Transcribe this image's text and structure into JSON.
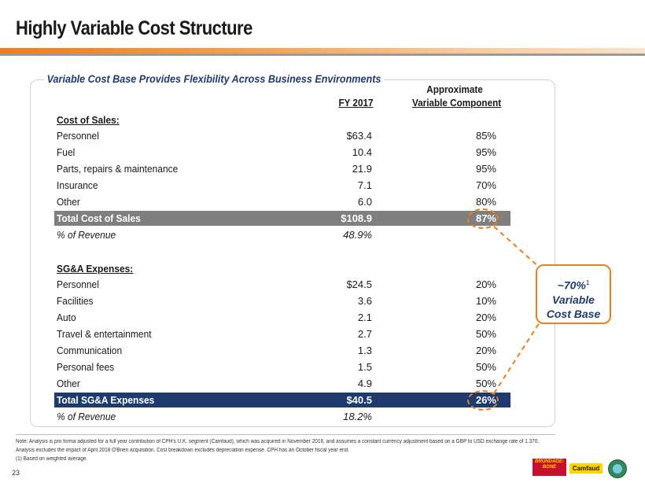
{
  "header": {
    "title": "Highly Variable Cost Structure"
  },
  "panel": {
    "title": "Variable Cost Base Provides Flexibility Across Business Environments",
    "col1_header": "FY 2017",
    "col2_header_line1": "Approximate",
    "col2_header_line2": "Variable Component"
  },
  "cost_of_sales": {
    "heading": "Cost of Sales:",
    "items": [
      {
        "label": "Personnel",
        "fy2017": "$63.4",
        "variable": "85%"
      },
      {
        "label": "Fuel",
        "fy2017": "10.4",
        "variable": "95%"
      },
      {
        "label": "Parts, repairs & maintenance",
        "fy2017": "21.9",
        "variable": "95%"
      },
      {
        "label": "Insurance",
        "fy2017": "7.1",
        "variable": "70%"
      },
      {
        "label": "Other",
        "fy2017": "6.0",
        "variable": "80%"
      }
    ],
    "total": {
      "label": "Total Cost of Sales",
      "fy2017": "$108.9",
      "variable": "87%"
    },
    "pct_revenue": {
      "label": "% of Revenue",
      "fy2017": "48.9%"
    }
  },
  "sga": {
    "heading": "SG&A Expenses:",
    "items": [
      {
        "label": "Personnel",
        "fy2017": "$24.5",
        "variable": "20%"
      },
      {
        "label": "Facilities",
        "fy2017": "3.6",
        "variable": "10%"
      },
      {
        "label": "Auto",
        "fy2017": "2.1",
        "variable": "20%"
      },
      {
        "label": "Travel & entertainment",
        "fy2017": "2.7",
        "variable": "50%"
      },
      {
        "label": "Communication",
        "fy2017": "1.3",
        "variable": "20%"
      },
      {
        "label": "Personal fees",
        "fy2017": "1.5",
        "variable": "50%"
      },
      {
        "label": "Other",
        "fy2017": "4.9",
        "variable": "50%"
      }
    ],
    "total": {
      "label": "Total SG&A Expenses",
      "fy2017": "$40.5",
      "variable": "26%"
    },
    "pct_revenue": {
      "label": "% of Revenue",
      "fy2017": "18.2%"
    }
  },
  "callout": {
    "value": "~70%",
    "footnote_ref": "1",
    "line2": "Variable",
    "line3": "Cost Base"
  },
  "footnotes": {
    "line1": "Note: Analysis is pro forma adjusted for a full year contribution of CPH's U.K. segment (Camfaud), which was acquired in November 2016, and assumes a constant currency adjustment based on a GBP to USD exchange rate of 1.370.",
    "line2": "Analysis excludes the impact of April 2018 O'Brien acquisition. Cost breakdown excludes depreciation expense. CPH has an October fiscal year end.",
    "line3": "(1) Based on weighted average."
  },
  "page_number": "23",
  "logos": {
    "logo1_text": "BRUNDAGE-BONE",
    "logo2_text": "Camfaud",
    "logo3_name": "globe-logo"
  },
  "colors": {
    "accent": "#f07d1a",
    "navy": "#1f3b6e",
    "gray_total": "#7f7f7f"
  }
}
